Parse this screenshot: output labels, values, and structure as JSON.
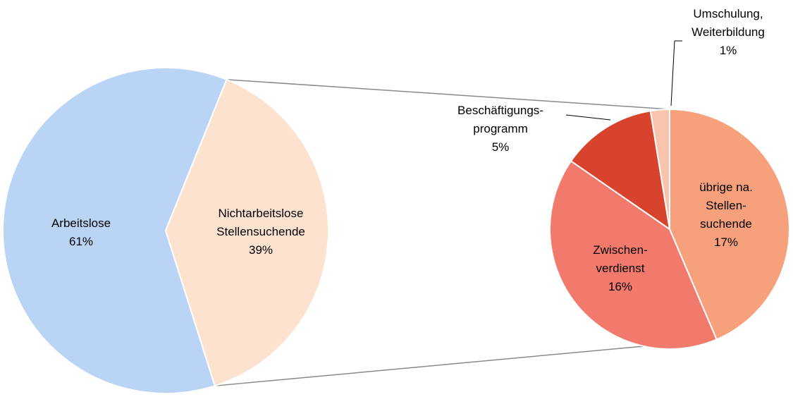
{
  "chart_data": {
    "type": "pie",
    "categories": [
      "Arbeitslose",
      "Nichtarbeitslose\nStellensuchende"
    ],
    "values": [
      61,
      39
    ],
    "value_labels": [
      "61%",
      "39%"
    ],
    "colors": [
      "#b9d4f4",
      "#fde2d0"
    ],
    "breakdown": {
      "categories": [
        "übrige na.\nStellen-\nsuchende",
        "Zwischen-\nverdienst",
        "Beschäftigungs-\nprogramm",
        "Umschulung,\nWeiterbildung"
      ],
      "values": [
        17,
        16,
        5,
        1
      ],
      "value_labels": [
        "17%",
        "16%",
        "5%",
        "1%"
      ],
      "colors": [
        "#f6a07c",
        "#f27a6c",
        "#d8432d",
        "#f9c4ad"
      ]
    }
  }
}
